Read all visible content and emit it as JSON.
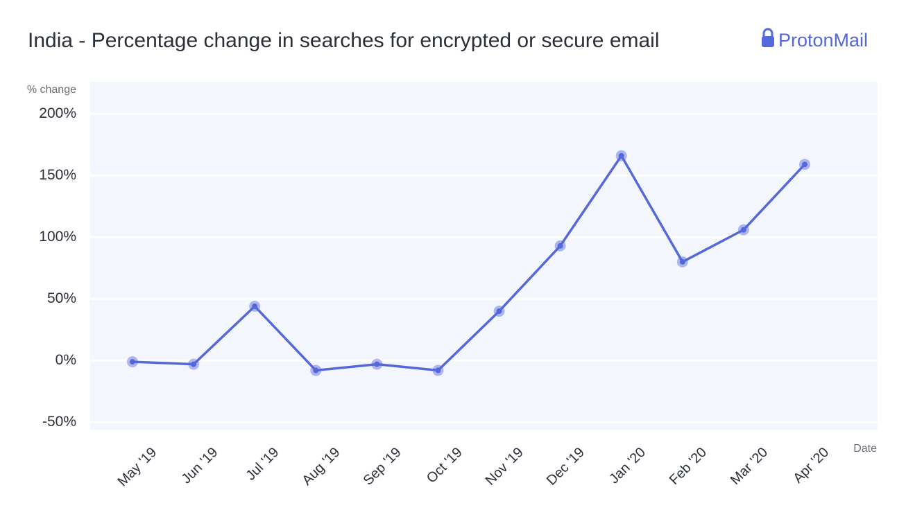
{
  "chart_data": {
    "type": "line",
    "title": "India - Percentage change in searches for encrypted or secure email",
    "logo": "ProtonMail",
    "y_axis_label": "% change",
    "x_axis_label": "Date",
    "categories": [
      "May '19",
      "Jun '19",
      "Jul '19",
      "Aug '19",
      "Sep '19",
      "Oct '19",
      "Nov '19",
      "Dec '19",
      "Jan '20",
      "Feb '20",
      "Mar '20",
      "Apr '20"
    ],
    "values": [
      -1,
      -3,
      44,
      -8,
      -3,
      -8,
      40,
      93,
      166,
      80,
      106,
      159
    ],
    "color": "#5468da",
    "ylim": [
      -56,
      226
    ],
    "yticks": [
      {
        "value": -50,
        "label": "-50%"
      },
      {
        "value": 0,
        "label": "0%"
      },
      {
        "value": 50,
        "label": "50%"
      },
      {
        "value": 100,
        "label": "100%"
      },
      {
        "value": 150,
        "label": "150%"
      },
      {
        "value": 200,
        "label": "200%"
      }
    ],
    "grid": true
  }
}
